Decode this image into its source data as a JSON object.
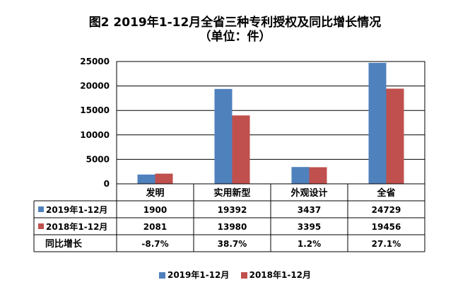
{
  "chart_data": {
    "type": "bar",
    "title": "图2 2019年1-12月全省三种专利授权及同比增长情况",
    "subtitle": "（单位：件）",
    "categories": [
      "发明",
      "实用新型",
      "外观设计",
      "全省"
    ],
    "series": [
      {
        "name": "2019年1-12月",
        "values": [
          1900,
          19392,
          3437,
          24729
        ],
        "color": "#4F81BD"
      },
      {
        "name": "2018年1-12月",
        "values": [
          2081,
          13980,
          3395,
          19456
        ],
        "color": "#C0504D"
      }
    ],
    "table_extra_row": {
      "label": "同比增长",
      "values": [
        "-8.7%",
        "38.7%",
        "1.2%",
        "27.1%"
      ]
    },
    "ylim": [
      0,
      25000
    ],
    "yticks": [
      0,
      5000,
      10000,
      15000,
      20000,
      25000
    ],
    "grid": true,
    "legend": "bottom"
  }
}
